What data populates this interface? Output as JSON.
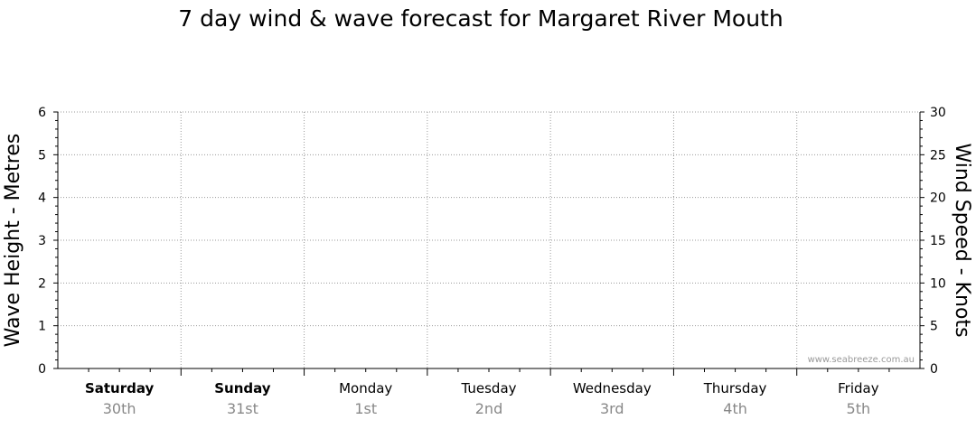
{
  "chart_data": {
    "type": "line",
    "title": "7 day wind & wave forecast for Margaret River Mouth",
    "y_left_label": "Wave Height - Metres",
    "y_right_label": "Wind Speed - Knots",
    "y_left_range": [
      0,
      6
    ],
    "y_left_ticks": [
      "0",
      "1",
      "2",
      "3",
      "4",
      "5",
      "6"
    ],
    "y_right_range": [
      0,
      30
    ],
    "y_right_ticks": [
      "0",
      "5",
      "10",
      "15",
      "20",
      "25",
      "30"
    ],
    "days": [
      {
        "name": "Saturday",
        "date": "30th",
        "bold": true
      },
      {
        "name": "Sunday",
        "date": "31st",
        "bold": true
      },
      {
        "name": "Monday",
        "date": "1st",
        "bold": false
      },
      {
        "name": "Tuesday",
        "date": "2nd",
        "bold": false
      },
      {
        "name": "Wednesday",
        "date": "3rd",
        "bold": false
      },
      {
        "name": "Thursday",
        "date": "4th",
        "bold": false
      },
      {
        "name": "Friday",
        "date": "5th",
        "bold": false
      }
    ],
    "series": [],
    "grid": true,
    "watermark": "www.seabreeze.com.au"
  }
}
